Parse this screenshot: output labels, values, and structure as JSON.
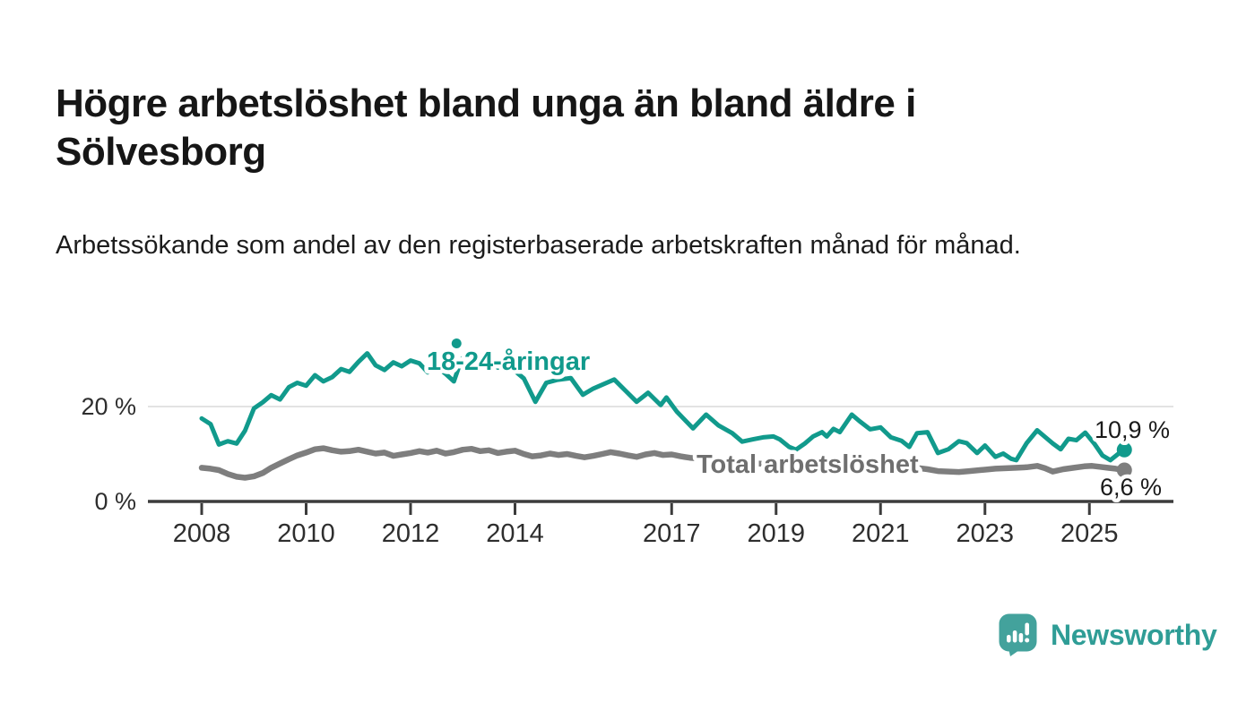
{
  "chart_data": {
    "type": "line",
    "title": "Högre arbetslöshet bland unga än bland äldre i Sölvesborg",
    "subtitle": "Arbetssökande som andel av den registerbaserade arbetskraften månad för månad.",
    "unit": "%",
    "grid": "horizontal-only",
    "legend_position": "inline-labels-on-lines",
    "x_axis": {
      "ticks": [
        2008,
        2010,
        2012,
        2014,
        2017,
        2019,
        2021,
        2023,
        2025
      ],
      "range": [
        2007.0,
        2026.4
      ]
    },
    "y_axis": {
      "ticks": [
        {
          "value": 0,
          "label": "0 %"
        },
        {
          "value": 20,
          "label": "20 %"
        }
      ],
      "range": [
        0,
        35
      ]
    },
    "series": [
      {
        "name": "18-24-åringar",
        "color": "#119a8c",
        "end_label": "10,9 %",
        "end_value": 10.9,
        "outlier_point": [
          2012.88,
          33.3
        ],
        "points": [
          [
            2008.0,
            17.5
          ],
          [
            2008.17,
            16.3
          ],
          [
            2008.33,
            12.0
          ],
          [
            2008.5,
            12.7
          ],
          [
            2008.67,
            12.2
          ],
          [
            2008.83,
            14.9
          ],
          [
            2009.0,
            19.6
          ],
          [
            2009.17,
            20.9
          ],
          [
            2009.33,
            22.4
          ],
          [
            2009.5,
            21.5
          ],
          [
            2009.67,
            24.1
          ],
          [
            2009.83,
            25.0
          ],
          [
            2010.0,
            24.4
          ],
          [
            2010.17,
            26.6
          ],
          [
            2010.33,
            25.3
          ],
          [
            2010.5,
            26.2
          ],
          [
            2010.67,
            27.9
          ],
          [
            2010.83,
            27.3
          ],
          [
            2011.0,
            29.4
          ],
          [
            2011.17,
            31.2
          ],
          [
            2011.33,
            28.7
          ],
          [
            2011.5,
            27.7
          ],
          [
            2011.67,
            29.3
          ],
          [
            2011.83,
            28.5
          ],
          [
            2012.0,
            29.7
          ],
          [
            2012.17,
            29.1
          ],
          [
            2012.33,
            27.2
          ],
          [
            2012.5,
            28.4
          ],
          [
            2012.67,
            26.9
          ],
          [
            2012.83,
            25.3
          ],
          [
            2012.92,
            28.2
          ],
          [
            2013.0,
            30.3
          ],
          [
            2013.17,
            29.2
          ],
          [
            2013.33,
            30.8
          ],
          [
            2013.5,
            29.5
          ],
          [
            2013.67,
            28.2
          ],
          [
            2013.83,
            28.9
          ],
          [
            2014.0,
            27.5
          ],
          [
            2014.17,
            25.9
          ],
          [
            2014.39,
            21.0
          ],
          [
            2014.6,
            25.0
          ],
          [
            2014.8,
            25.6
          ],
          [
            2015.07,
            26.0
          ],
          [
            2015.3,
            22.5
          ],
          [
            2015.5,
            23.8
          ],
          [
            2015.9,
            25.7
          ],
          [
            2016.1,
            23.5
          ],
          [
            2016.33,
            21.0
          ],
          [
            2016.55,
            22.9
          ],
          [
            2016.79,
            20.3
          ],
          [
            2016.9,
            21.9
          ],
          [
            2017.1,
            18.9
          ],
          [
            2017.41,
            15.4
          ],
          [
            2017.66,
            18.3
          ],
          [
            2017.9,
            16.0
          ],
          [
            2018.16,
            14.4
          ],
          [
            2018.35,
            12.6
          ],
          [
            2018.56,
            13.1
          ],
          [
            2018.75,
            13.5
          ],
          [
            2018.95,
            13.7
          ],
          [
            2019.07,
            13.1
          ],
          [
            2019.25,
            11.5
          ],
          [
            2019.38,
            10.9
          ],
          [
            2019.55,
            12.2
          ],
          [
            2019.71,
            13.7
          ],
          [
            2019.88,
            14.6
          ],
          [
            2019.97,
            13.7
          ],
          [
            2020.1,
            15.3
          ],
          [
            2020.22,
            14.6
          ],
          [
            2020.45,
            18.3
          ],
          [
            2020.6,
            16.9
          ],
          [
            2020.8,
            15.2
          ],
          [
            2021.0,
            15.6
          ],
          [
            2021.2,
            13.5
          ],
          [
            2021.4,
            12.8
          ],
          [
            2021.55,
            11.5
          ],
          [
            2021.7,
            14.4
          ],
          [
            2021.9,
            14.6
          ],
          [
            2022.1,
            10.2
          ],
          [
            2022.3,
            11.0
          ],
          [
            2022.5,
            12.7
          ],
          [
            2022.65,
            12.3
          ],
          [
            2022.85,
            10.2
          ],
          [
            2023.0,
            11.8
          ],
          [
            2023.2,
            9.4
          ],
          [
            2023.35,
            10.1
          ],
          [
            2023.5,
            9.0
          ],
          [
            2023.6,
            8.7
          ],
          [
            2023.8,
            12.3
          ],
          [
            2024.0,
            15.0
          ],
          [
            2024.15,
            13.6
          ],
          [
            2024.3,
            12.2
          ],
          [
            2024.45,
            11.0
          ],
          [
            2024.6,
            13.2
          ],
          [
            2024.75,
            12.9
          ],
          [
            2024.92,
            14.5
          ],
          [
            2025.1,
            12.1
          ],
          [
            2025.25,
            9.7
          ],
          [
            2025.4,
            8.7
          ],
          [
            2025.55,
            10.0
          ],
          [
            2025.67,
            10.9
          ]
        ]
      },
      {
        "name": "Total arbetslöshet",
        "color": "#7e7e7e",
        "end_label": "6,6 %",
        "end_value": 6.6,
        "points": [
          [
            2008.0,
            7.1
          ],
          [
            2008.17,
            6.9
          ],
          [
            2008.33,
            6.6
          ],
          [
            2008.5,
            5.8
          ],
          [
            2008.67,
            5.2
          ],
          [
            2008.83,
            5.0
          ],
          [
            2009.0,
            5.3
          ],
          [
            2009.17,
            6.0
          ],
          [
            2009.33,
            7.1
          ],
          [
            2009.5,
            8.0
          ],
          [
            2009.67,
            8.9
          ],
          [
            2009.83,
            9.7
          ],
          [
            2010.0,
            10.3
          ],
          [
            2010.17,
            11.0
          ],
          [
            2010.33,
            11.2
          ],
          [
            2010.5,
            10.8
          ],
          [
            2010.67,
            10.5
          ],
          [
            2010.83,
            10.6
          ],
          [
            2011.0,
            10.9
          ],
          [
            2011.17,
            10.5
          ],
          [
            2011.33,
            10.1
          ],
          [
            2011.5,
            10.3
          ],
          [
            2011.67,
            9.6
          ],
          [
            2011.83,
            9.9
          ],
          [
            2012.0,
            10.2
          ],
          [
            2012.17,
            10.6
          ],
          [
            2012.33,
            10.3
          ],
          [
            2012.5,
            10.7
          ],
          [
            2012.67,
            10.1
          ],
          [
            2012.83,
            10.4
          ],
          [
            2013.0,
            10.9
          ],
          [
            2013.17,
            11.1
          ],
          [
            2013.33,
            10.6
          ],
          [
            2013.5,
            10.8
          ],
          [
            2013.67,
            10.2
          ],
          [
            2013.83,
            10.5
          ],
          [
            2014.0,
            10.7
          ],
          [
            2014.17,
            10.0
          ],
          [
            2014.33,
            9.5
          ],
          [
            2014.5,
            9.7
          ],
          [
            2014.67,
            10.1
          ],
          [
            2014.83,
            9.8
          ],
          [
            2015.0,
            10.0
          ],
          [
            2015.17,
            9.6
          ],
          [
            2015.33,
            9.3
          ],
          [
            2015.5,
            9.6
          ],
          [
            2015.67,
            10.0
          ],
          [
            2015.83,
            10.4
          ],
          [
            2016.0,
            10.1
          ],
          [
            2016.17,
            9.7
          ],
          [
            2016.33,
            9.4
          ],
          [
            2016.5,
            9.9
          ],
          [
            2016.67,
            10.2
          ],
          [
            2016.83,
            9.8
          ],
          [
            2017.0,
            9.9
          ],
          [
            2017.17,
            9.5
          ],
          [
            2017.35,
            9.2
          ],
          [
            2017.6,
            9.0
          ],
          [
            2017.9,
            8.6
          ],
          [
            2018.2,
            8.3
          ],
          [
            2018.5,
            8.1
          ],
          [
            2018.8,
            7.9
          ],
          [
            2019.1,
            7.7
          ],
          [
            2019.4,
            7.5
          ],
          [
            2019.7,
            7.4
          ],
          [
            2020.0,
            7.7
          ],
          [
            2020.3,
            8.3
          ],
          [
            2020.5,
            8.5
          ],
          [
            2020.8,
            8.2
          ],
          [
            2021.0,
            8.0
          ],
          [
            2021.3,
            7.6
          ],
          [
            2021.6,
            7.2
          ],
          [
            2021.9,
            6.8
          ],
          [
            2022.1,
            6.4
          ],
          [
            2022.3,
            6.3
          ],
          [
            2022.5,
            6.2
          ],
          [
            2022.7,
            6.4
          ],
          [
            2022.9,
            6.6
          ],
          [
            2023.0,
            6.7
          ],
          [
            2023.2,
            6.9
          ],
          [
            2023.4,
            7.0
          ],
          [
            2023.6,
            7.1
          ],
          [
            2023.8,
            7.2
          ],
          [
            2024.0,
            7.5
          ],
          [
            2024.15,
            7.0
          ],
          [
            2024.3,
            6.3
          ],
          [
            2024.5,
            6.8
          ],
          [
            2024.7,
            7.1
          ],
          [
            2024.9,
            7.4
          ],
          [
            2025.05,
            7.5
          ],
          [
            2025.2,
            7.3
          ],
          [
            2025.35,
            7.1
          ],
          [
            2025.5,
            6.9
          ],
          [
            2025.67,
            6.6
          ]
        ]
      }
    ]
  },
  "footer": {
    "brand": "Newsworthy",
    "logo_icon": "newsworthy-speech-bubble-bar-chart-icon"
  }
}
